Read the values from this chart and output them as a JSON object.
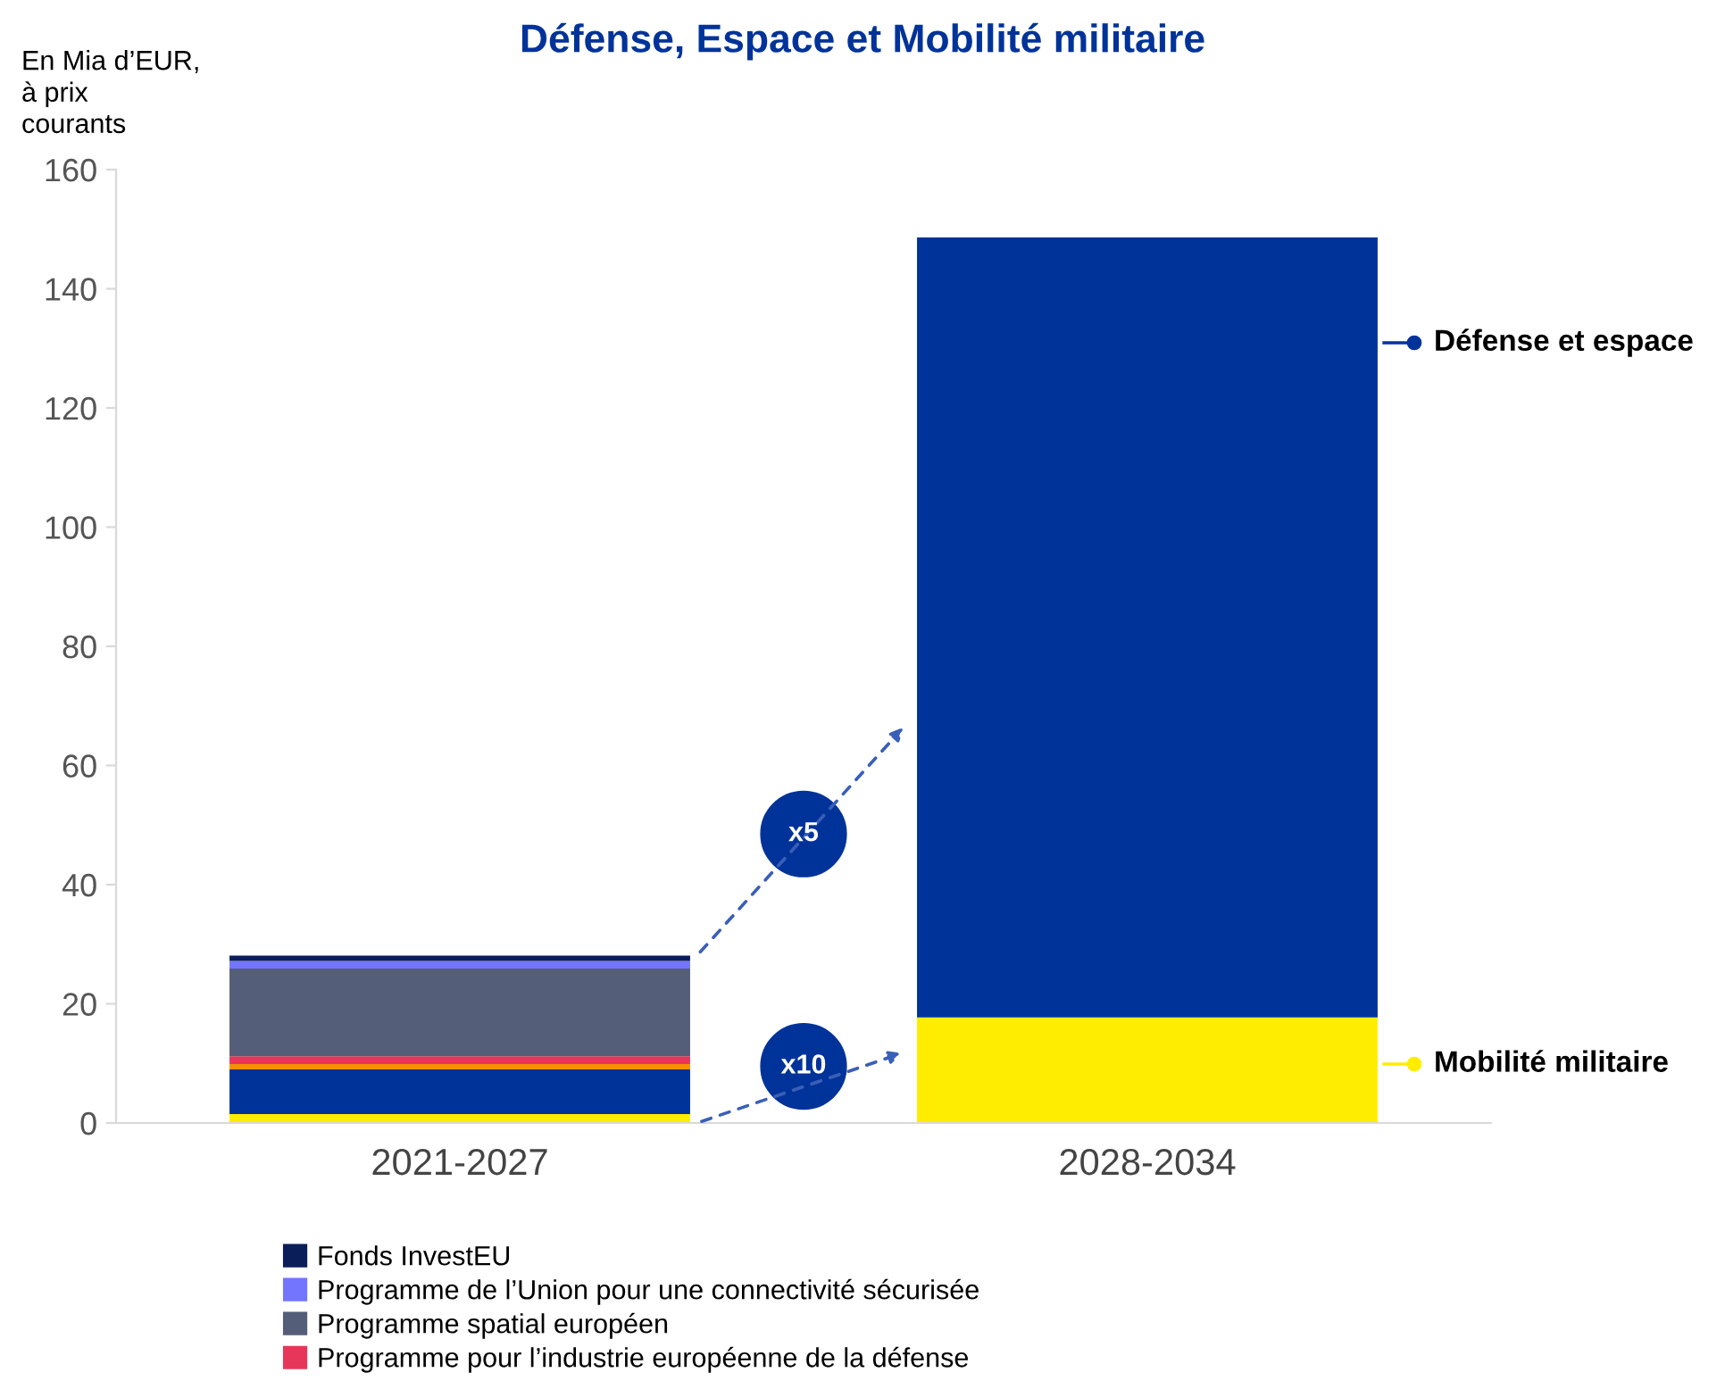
{
  "chart_data": {
    "type": "bar",
    "title": "Défense, Espace et Mobilité militaire",
    "ylabel": "En Mia d’EUR,\nà prix\ncourants",
    "categories": [
      "2021-2027",
      "2028-2034"
    ],
    "stacked": true,
    "series": [
      {
        "color": "#ffed00",
        "values": [
          1.5,
          17.7
        ]
      },
      {
        "color": "#003399",
        "values": [
          7.5,
          130.9
        ]
      },
      {
        "color": "#f39200",
        "values": [
          0.9,
          0
        ]
      },
      {
        "name": "Programme pour l’industrie européenne de la défense",
        "color": "#e6375a",
        "values": [
          1.3,
          0
        ]
      },
      {
        "name": "Programme spatial européen",
        "color": "#545e78",
        "values": [
          14.7,
          0
        ]
      },
      {
        "name": "Programme de l’Union pour une connectivité sécurisée",
        "color": "#7375ff",
        "values": [
          1.3,
          0
        ]
      },
      {
        "name": "Fonds InvestEU",
        "color": "#0a1e5a",
        "values": [
          0.9,
          0
        ]
      }
    ],
    "ylim": [
      0,
      160
    ],
    "yticks": [
      0,
      20,
      40,
      60,
      80,
      100,
      120,
      140,
      160
    ],
    "grid": false,
    "legend": "bottom",
    "annotations": [
      "Défense et espace",
      "Mobilité militaire",
      "x5",
      "x10"
    ]
  }
}
